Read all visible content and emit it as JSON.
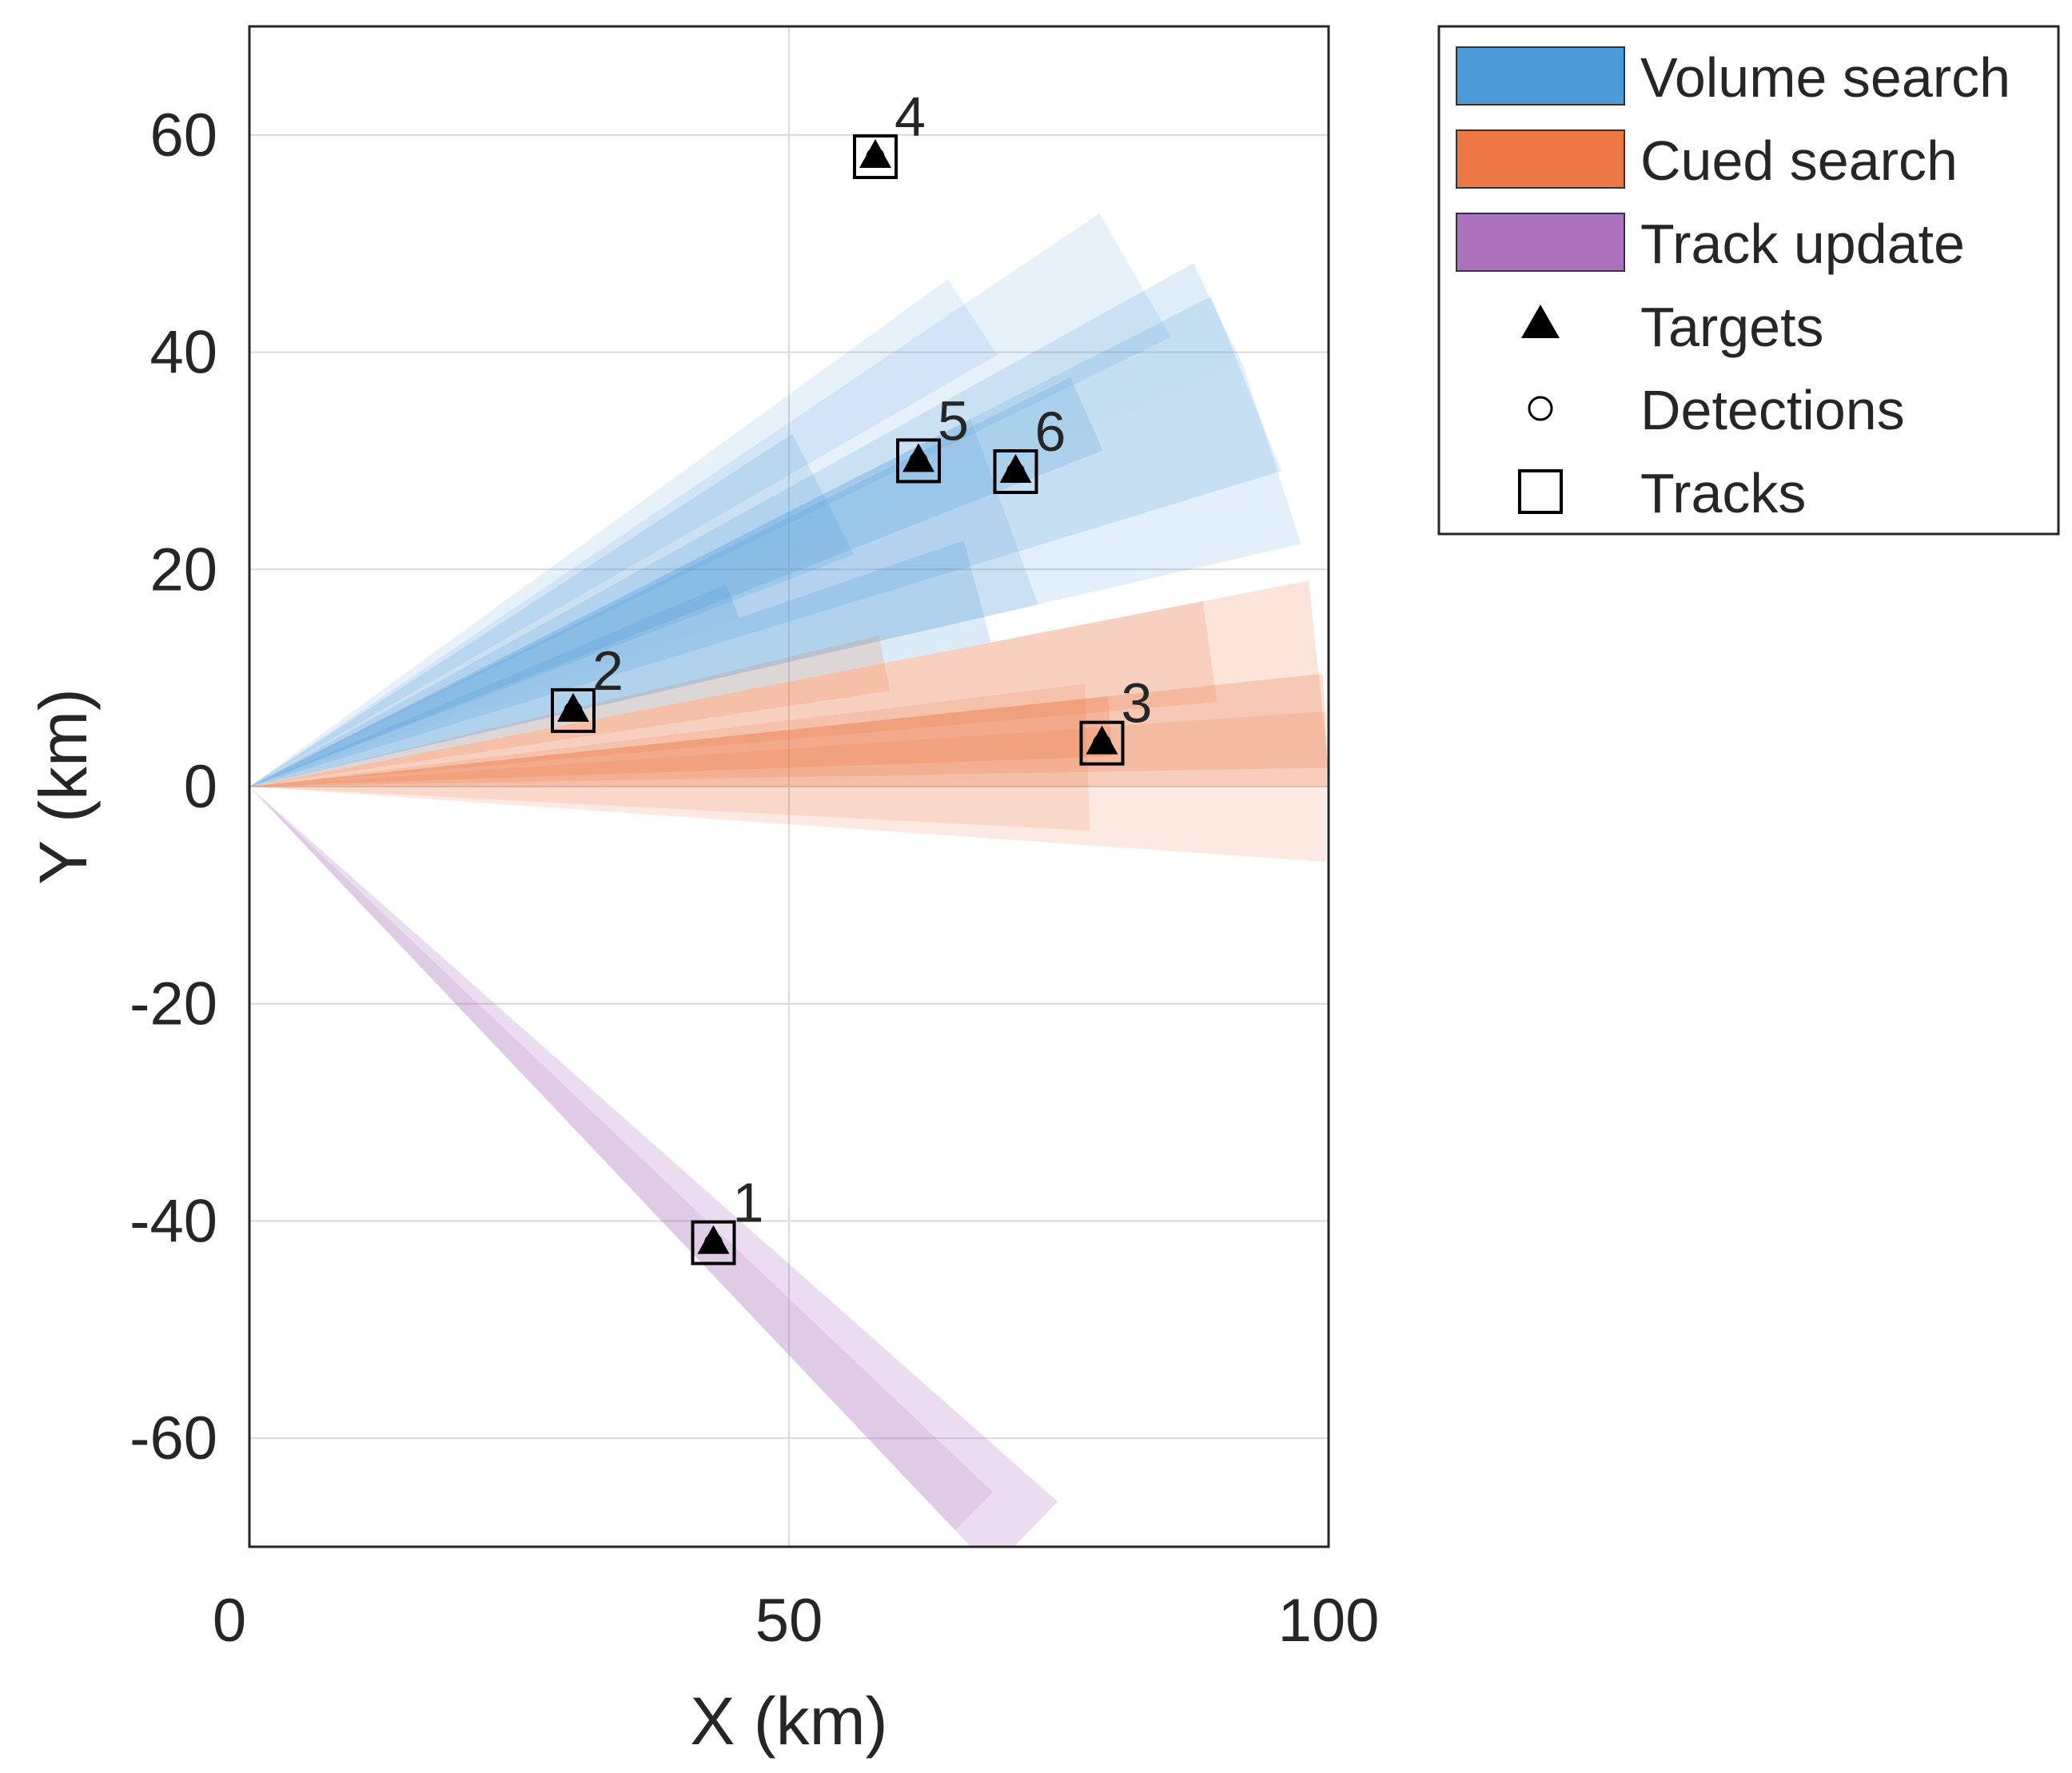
{
  "chart_data": {
    "type": "scatter",
    "title": "",
    "xlabel": "X (km)",
    "ylabel": "Y (km)",
    "xlim": [
      0,
      100
    ],
    "ylim": [
      -70,
      70
    ],
    "xticks": [
      0,
      50,
      100
    ],
    "yticks": [
      -60,
      -40,
      -20,
      0,
      20,
      40,
      60
    ],
    "grid": true,
    "legend_position": "outside-top-right",
    "colors": {
      "volume": "#3a8fd4",
      "cued": "#ea6a31",
      "track": "#a262b6",
      "marker": "#000000",
      "grid": "#d9d9d9",
      "axes": "#262626"
    },
    "legend": [
      {
        "label": "Volume search",
        "kind": "patch",
        "color": "#3a8fd4"
      },
      {
        "label": "Cued search",
        "kind": "patch",
        "color": "#ea6a31"
      },
      {
        "label": "Track update",
        "kind": "patch",
        "color": "#a262b6"
      },
      {
        "label": "Targets",
        "kind": "triangle"
      },
      {
        "label": "Detections",
        "kind": "circle"
      },
      {
        "label": "Tracks",
        "kind": "square"
      }
    ],
    "targets": [
      {
        "id": "1",
        "x": 43,
        "y": -42
      },
      {
        "id": "2",
        "x": 30,
        "y": 7
      },
      {
        "id": "3",
        "x": 79,
        "y": 4
      },
      {
        "id": "4",
        "x": 58,
        "y": 58
      },
      {
        "id": "5",
        "x": 62,
        "y": 30
      },
      {
        "id": "6",
        "x": 71,
        "y": 29
      }
    ],
    "beams": {
      "volume": [
        {
          "center_deg": 20,
          "width_deg": 14,
          "range": 75,
          "alpha": 0.14
        },
        {
          "center_deg": 22,
          "width_deg": 10,
          "range": 100,
          "alpha": 0.16
        },
        {
          "center_deg": 26,
          "width_deg": 6,
          "range": 100,
          "alpha": 0.16
        },
        {
          "center_deg": 30,
          "width_deg": 8,
          "range": 95,
          "alpha": 0.12
        },
        {
          "center_deg": 18,
          "width_deg": 10,
          "range": 100,
          "alpha": 0.14
        },
        {
          "center_deg": 27,
          "width_deg": 12,
          "range": 60,
          "alpha": 0.16
        },
        {
          "center_deg": 33,
          "width_deg": 6,
          "range": 80,
          "alpha": 0.12
        },
        {
          "center_deg": 24,
          "width_deg": 5,
          "range": 85,
          "alpha": 0.18
        },
        {
          "center_deg": 15,
          "width_deg": 8,
          "range": 70,
          "alpha": 0.18
        },
        {
          "center_deg": 21,
          "width_deg": 4,
          "range": 48,
          "alpha": 0.2
        }
      ],
      "cued": [
        {
          "center_deg": 6,
          "width_deg": 10,
          "range": 100,
          "alpha": 0.18
        },
        {
          "center_deg": 3,
          "width_deg": 6,
          "range": 100,
          "alpha": 0.22
        },
        {
          "center_deg": 0,
          "width_deg": 8,
          "range": 100,
          "alpha": 0.14
        },
        {
          "center_deg": 8,
          "width_deg": 6,
          "range": 90,
          "alpha": 0.16
        },
        {
          "center_deg": 11,
          "width_deg": 5,
          "range": 60,
          "alpha": 0.16
        },
        {
          "center_deg": 4,
          "width_deg": 4,
          "range": 80,
          "alpha": 0.2
        },
        {
          "center_deg": 2,
          "width_deg": 10,
          "range": 78,
          "alpha": 0.14
        }
      ],
      "track": [
        {
          "center_deg": -44,
          "width_deg": 5,
          "range": 100,
          "alpha": 0.22
        },
        {
          "center_deg": -45,
          "width_deg": 3,
          "range": 95,
          "alpha": 0.14
        }
      ]
    }
  }
}
